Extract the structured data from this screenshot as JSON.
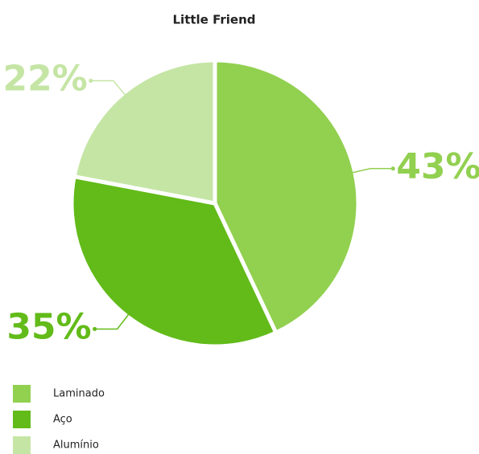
{
  "chart_data": {
    "type": "pie",
    "title": "Little Friend",
    "categories": [
      "Laminado",
      "Aço",
      "Alumínio"
    ],
    "values": [
      43,
      35,
      22
    ],
    "value_labels": [
      "43%",
      "35%",
      "22%"
    ],
    "colors": [
      "#92d050",
      "#62bb19",
      "#c5e5a5"
    ],
    "legend": "bottom-left"
  }
}
